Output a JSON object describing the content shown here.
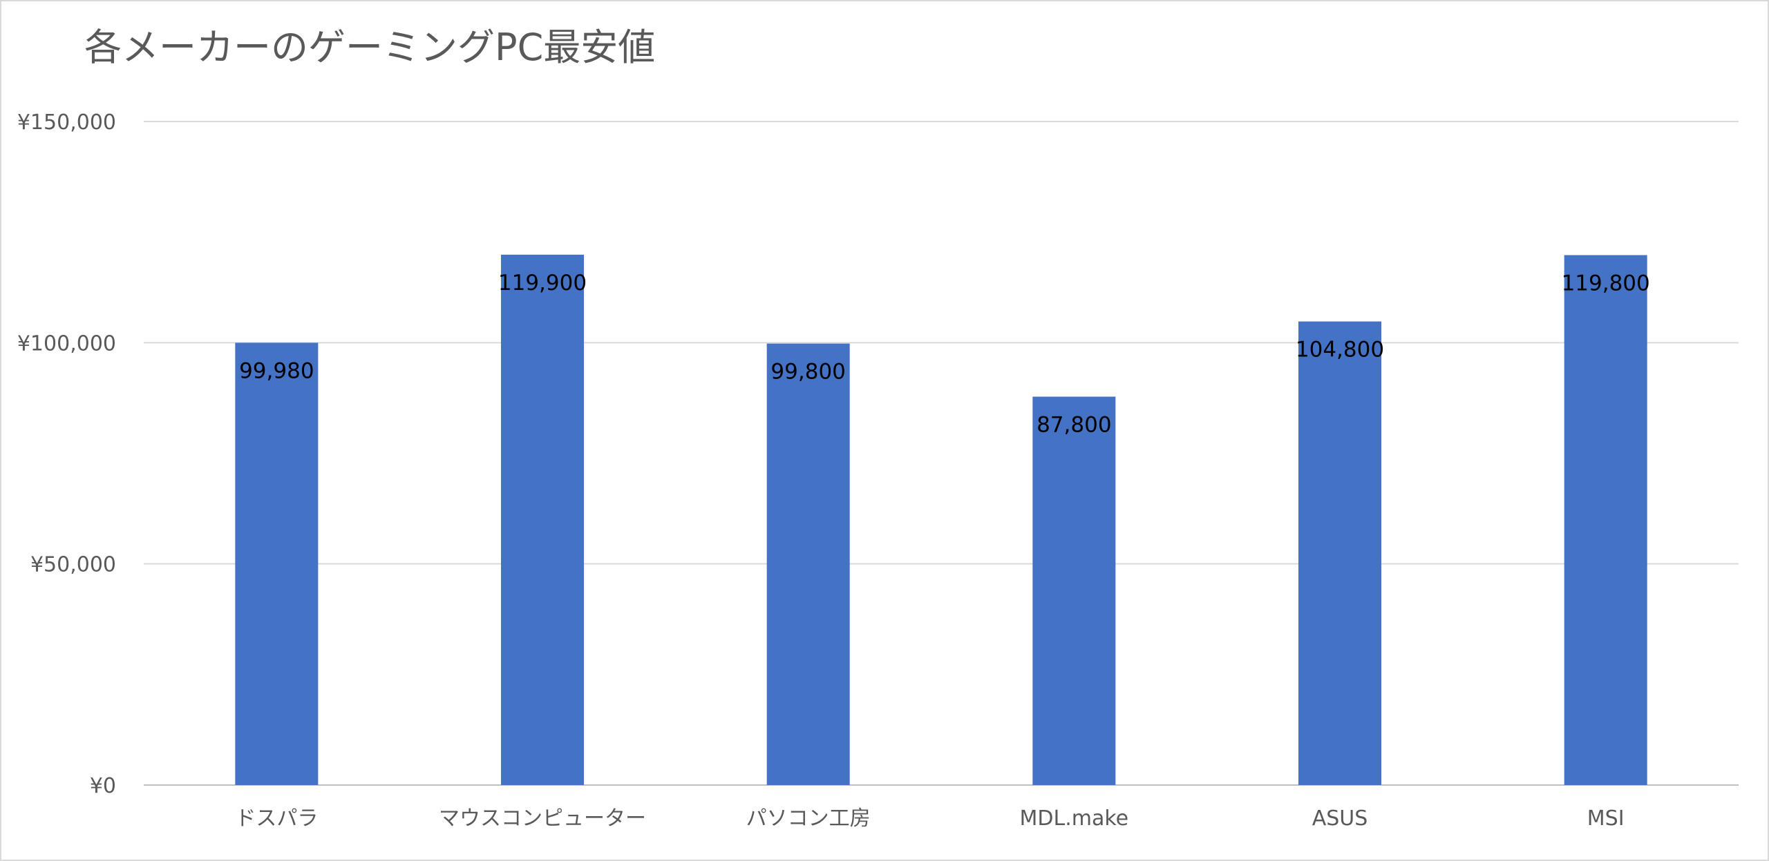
{
  "chart_data": {
    "type": "bar",
    "title": "各メーカーのゲーミングPC最安値",
    "categories": [
      "ドスパラ",
      "マウスコンピューター",
      "パソコン工房",
      "MDL.make",
      "ASUS",
      "MSI"
    ],
    "series": [
      {
        "values": [
          99980,
          119900,
          99800,
          87800,
          104800,
          119800
        ],
        "data_labels": [
          "99,980",
          "119,900",
          "99,800",
          "87,800",
          "104,800",
          "119,800"
        ]
      }
    ],
    "ylim": [
      0,
      150000
    ],
    "y_ticks": [
      0,
      50000,
      100000,
      150000
    ],
    "y_tick_labels": [
      "¥0",
      "¥50,000",
      "¥100,000",
      "¥150,000"
    ],
    "xlabel": "",
    "ylabel": "",
    "grid": true,
    "legend": "none",
    "colors": {
      "bar": "#4472c4",
      "gridline": "#d9d9d9",
      "axis_text": "#595959",
      "data_label": "#000000"
    }
  }
}
